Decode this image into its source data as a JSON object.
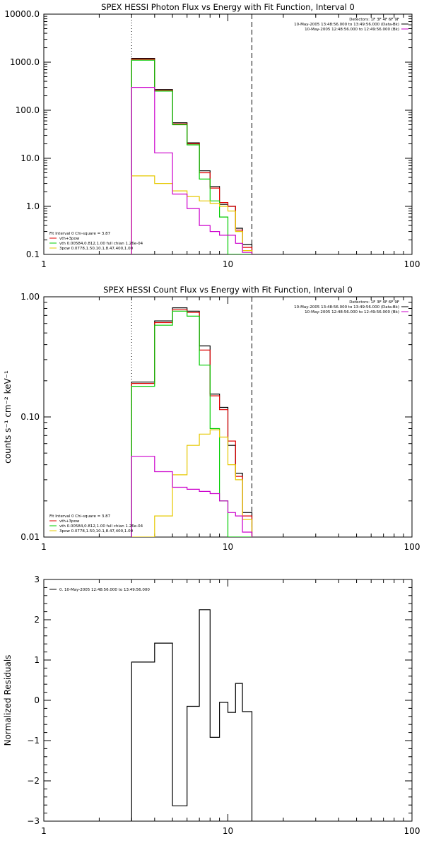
{
  "chart_data": [
    {
      "type": "line",
      "title": "SPEX HESSI Photon Flux vs Energy with Fit Function, Interval 0",
      "xscale": "log",
      "yscale": "log",
      "xlim": [
        1,
        100
      ],
      "ylim": [
        0.1,
        10000
      ],
      "x_ticks": [
        "1",
        "10",
        "100"
      ],
      "y_ticks": [
        "0.1",
        "1.0",
        "10.0",
        "100.0",
        "1000.0",
        "10000.0"
      ],
      "vlines": {
        "dotted": 3,
        "dashed": 13.5
      },
      "header": [
        {
          "text": "Detectors: 1F 3F 4F 6F 9F",
          "color": "#000000"
        },
        {
          "text": "10-May-2005 13:48:56.000 to 13:49:56.000 (Data-Bk)",
          "color": "#000000"
        },
        {
          "text": "10-May-2005 12:48:56.000 to 12:49:56.000 (Bk)",
          "color": "#cc00cc"
        }
      ],
      "legend_title": "Fit Interval 0   Chi-square = 3.87",
      "legend": [
        {
          "text": "vth+3pow",
          "color": "#e00000"
        },
        {
          "text": "vth 0.00584,0.812,1.00   full chian 1.26e-04",
          "color": "#00cc00"
        },
        {
          "text": "3pow 0.0778,1.50,10.1,8.47,400,1.00",
          "color": "#e6c800"
        }
      ],
      "edges": [
        3,
        4,
        5,
        6,
        7,
        8,
        9,
        10,
        11,
        12,
        13.5
      ],
      "series": [
        {
          "color": "#000000",
          "values": [
            1200,
            270,
            55,
            21,
            5.5,
            2.6,
            1.1,
            1.0,
            0.35,
            0.16
          ]
        },
        {
          "color": "#e00000",
          "values": [
            1150,
            260,
            52,
            20,
            5.0,
            2.4,
            1.2,
            1.0,
            0.32,
            0.14
          ]
        },
        {
          "color": "#00cc00",
          "values": [
            1100,
            250,
            50,
            19,
            3.7,
            1.3,
            0.6,
            0.1,
            0.1,
            0.1
          ]
        },
        {
          "color": "#e6c800",
          "values": [
            4.3,
            3.0,
            2.1,
            1.6,
            1.3,
            1.15,
            1.0,
            0.8,
            0.3,
            0.12
          ]
        },
        {
          "color": "#cc00cc",
          "values": [
            300,
            13,
            1.8,
            0.9,
            0.4,
            0.3,
            0.25,
            0.25,
            0.17,
            0.11
          ]
        }
      ]
    },
    {
      "type": "line",
      "title": "SPEX HESSI Count Flux vs Energy with Fit Function, Interval 0",
      "ylabel": "counts s⁻¹ cm⁻² keV⁻¹",
      "xscale": "log",
      "yscale": "log",
      "xlim": [
        1,
        100
      ],
      "ylim": [
        0.01,
        1.0
      ],
      "x_ticks": [
        "1",
        "10",
        "100"
      ],
      "y_ticks": [
        "0.01",
        "0.10",
        "1.00"
      ],
      "vlines": {
        "dotted": 3,
        "dashed": 13.5
      },
      "header": [
        {
          "text": "Detectors: 1F 3F 4F 6F 9F",
          "color": "#000000"
        },
        {
          "text": "10-May-2005 13:48:56.000 to 13:49:56.000 (Data-Bk)",
          "color": "#000000"
        },
        {
          "text": "10-May-2005 12:48:56.000 to 12:49:56.000 (Bk)",
          "color": "#cc00cc"
        }
      ],
      "legend_title": "Fit Interval 0   Chi-square = 3.87",
      "legend": [
        {
          "text": "vth+3pow",
          "color": "#e00000"
        },
        {
          "text": "vth 0.00584,0.812,1.00   full chian 1.26e-04",
          "color": "#00cc00"
        },
        {
          "text": "3pow 0.0778,1.50,10.1,8.47,400,1.00",
          "color": "#e6c800"
        }
      ],
      "edges": [
        3,
        4,
        5,
        6,
        7,
        8,
        9,
        10,
        11,
        12,
        13.5
      ],
      "series": [
        {
          "color": "#000000",
          "values": [
            0.195,
            0.63,
            0.81,
            0.76,
            0.39,
            0.155,
            0.12,
            0.058,
            0.034,
            0.016
          ]
        },
        {
          "color": "#e00000",
          "values": [
            0.19,
            0.61,
            0.78,
            0.74,
            0.36,
            0.15,
            0.115,
            0.063,
            0.032,
            0.015
          ]
        },
        {
          "color": "#00cc00",
          "values": [
            0.18,
            0.58,
            0.76,
            0.69,
            0.27,
            0.08,
            0.02,
            0.01,
            0.01,
            0.01
          ]
        },
        {
          "color": "#e6c800",
          "values": [
            0.01,
            0.015,
            0.033,
            0.058,
            0.072,
            0.078,
            0.068,
            0.04,
            0.03,
            0.014
          ]
        },
        {
          "color": "#cc00cc",
          "values": [
            0.047,
            0.035,
            0.026,
            0.025,
            0.024,
            0.023,
            0.02,
            0.016,
            0.015,
            0.011
          ]
        }
      ]
    },
    {
      "type": "line",
      "ylabel": "Normalized Residuals",
      "xscale": "log",
      "yscale": "linear",
      "xlim": [
        1,
        100
      ],
      "ylim": [
        -3,
        3
      ],
      "x_ticks": [
        "1",
        "10",
        "100"
      ],
      "y_ticks": [
        "-3",
        "-2",
        "-1",
        "0",
        "1",
        "2",
        "3"
      ],
      "legend": [
        {
          "text": "0. 10-May-2005 12:48:56.000 to 13:49:56.000",
          "color": "#000000"
        }
      ],
      "edges": [
        3,
        4,
        5,
        6,
        7,
        8,
        9,
        10,
        11,
        12,
        13.5
      ],
      "series": [
        {
          "color": "#000000",
          "values": [
            0.95,
            1.42,
            -2.62,
            -0.15,
            2.25,
            -0.92,
            -0.05,
            -0.3,
            0.42,
            -0.28
          ]
        }
      ]
    }
  ]
}
